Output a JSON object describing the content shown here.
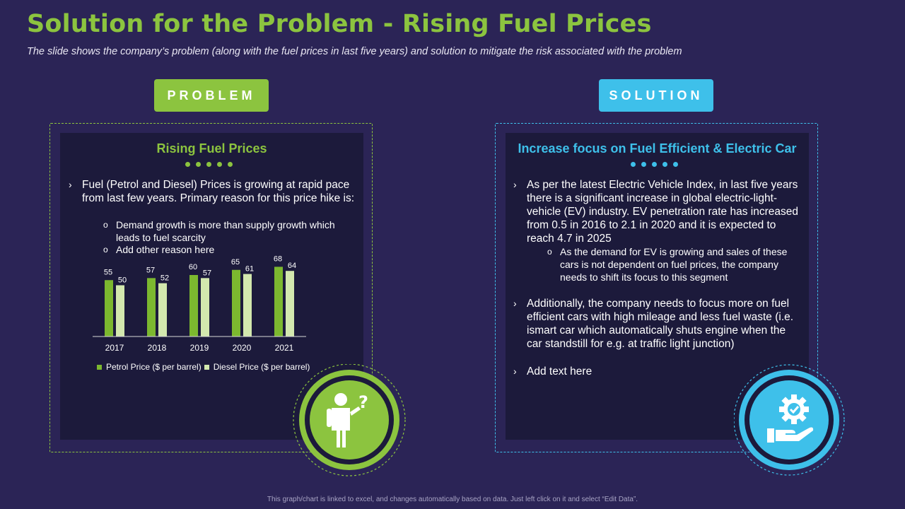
{
  "title": "Solution for the Problem - Rising Fuel Prices",
  "subtitle": "The slide shows the company’s problem (along with the fuel prices in last five years) and solution to mitigate the risk associated with the problem",
  "problem": {
    "tag": "PROBLEM",
    "heading": "Rising Fuel Prices",
    "bullet": "Fuel (Petrol and Diesel) Prices is growing at rapid pace from last few years. Primary reason for this price hike is:",
    "sub_items": [
      "Demand growth is more than supply growth which leads to fuel scarcity",
      "Add other reason here"
    ],
    "bullet_mark": "›",
    "sub_mark": "o"
  },
  "solution": {
    "tag": "SOLUTION",
    "heading": "Increase focus on Fuel Efficient & Electric Car",
    "bullets": [
      "As per the latest Electric Vehicle Index, in last five years there is a significant increase in global electric-light-vehicle (EV) industry. EV penetration rate has increased from 0.5 in 2016 to 2.1 in 2020 and it is expected to reach 4.7 in 2025",
      "Additionally, the company needs to focus more on fuel efficient cars with high mileage and less fuel waste (i.e. ismart car which automatically shuts engine when the car standstill for e.g. at traffic light junction)",
      "Add text here"
    ],
    "sub_item": "As the demand for EV is growing and sales of these cars is not dependent on fuel prices, the company needs to shift its focus to this segment",
    "bullet_mark": "›",
    "sub_mark": "o"
  },
  "footnote": "This graph/chart is linked to excel, and changes automatically based on data. Just left click on it and select “Edit Data”.",
  "icons": {
    "problem_icon": "person-question-icon",
    "solution_icon": "gear-hand-icon"
  },
  "colors": {
    "background": "#2b2456",
    "panel": "#1c1a3b",
    "green": "#8cc43f",
    "light_green": "#d3e8ae",
    "blue": "#3ec0ea"
  },
  "chart_data": {
    "type": "bar",
    "categories": [
      "2017",
      "2018",
      "2019",
      "2020",
      "2021"
    ],
    "series": [
      {
        "name": "Petrol Price ($ per barrel)",
        "values": [
          55,
          57,
          60,
          65,
          68
        ],
        "color": "#7cb82f"
      },
      {
        "name": "Diesel Price ($ per barrel)",
        "values": [
          50,
          52,
          57,
          61,
          64
        ],
        "color": "#d3e8ae"
      }
    ],
    "title": "",
    "xlabel": "",
    "ylabel": "",
    "ylim": [
      0,
      80
    ],
    "legend": "bottom",
    "data_labels": true,
    "grid": false
  }
}
